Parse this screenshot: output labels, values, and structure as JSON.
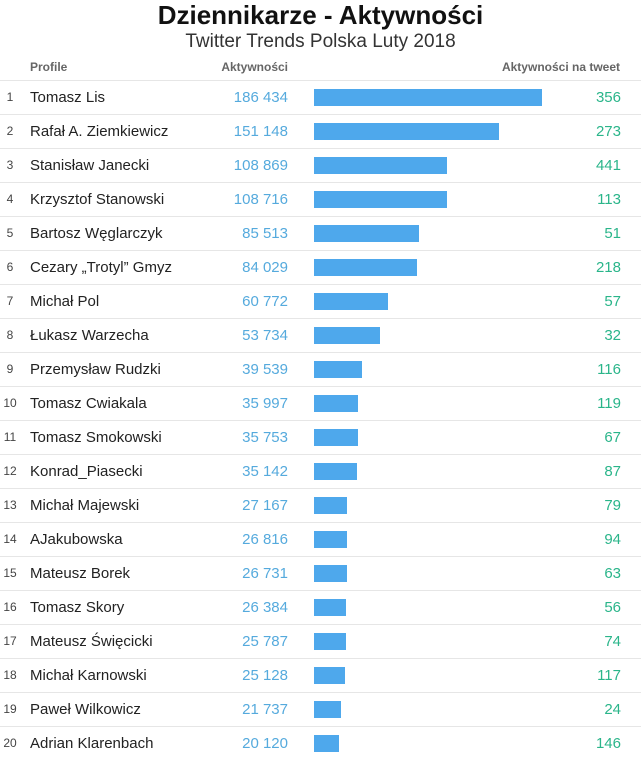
{
  "chart_data": {
    "type": "table",
    "title": "Dziennikarze - Aktywności",
    "subtitle": "Twitter Trends Polska Luty 2018",
    "columns": [
      "Profile",
      "Aktywności",
      "Aktywności na tweet"
    ],
    "bar_color": "#4ea8ec",
    "aktywnosci_color": "#55aadd",
    "per_tweet_color": "#2ab58a",
    "rows": [
      {
        "rank": "1",
        "name": "Tomasz Lis",
        "aktywnosci_label": "186 434",
        "aktywnosci": 186434,
        "per_tweet": "356"
      },
      {
        "rank": "2",
        "name": "Rafał A. Ziemkiewicz",
        "aktywnosci_label": "151 148",
        "aktywnosci": 151148,
        "per_tweet": "273"
      },
      {
        "rank": "3",
        "name": "Stanisław Janecki",
        "aktywnosci_label": "108 869",
        "aktywnosci": 108869,
        "per_tweet": "441"
      },
      {
        "rank": "4",
        "name": "Krzysztof Stanowski",
        "aktywnosci_label": "108 716",
        "aktywnosci": 108716,
        "per_tweet": "113"
      },
      {
        "rank": "5",
        "name": "Bartosz Węglarczyk",
        "aktywnosci_label": "85 513",
        "aktywnosci": 85513,
        "per_tweet": "51"
      },
      {
        "rank": "6",
        "name": "Cezary „Trotyl” Gmyz",
        "aktywnosci_label": "84 029",
        "aktywnosci": 84029,
        "per_tweet": "218"
      },
      {
        "rank": "7",
        "name": "Michał Pol",
        "aktywnosci_label": "60 772",
        "aktywnosci": 60772,
        "per_tweet": "57"
      },
      {
        "rank": "8",
        "name": "Łukasz Warzecha",
        "aktywnosci_label": "53 734",
        "aktywnosci": 53734,
        "per_tweet": "32"
      },
      {
        "rank": "9",
        "name": "Przemysław Rudzki",
        "aktywnosci_label": "39 539",
        "aktywnosci": 39539,
        "per_tweet": "116"
      },
      {
        "rank": "10",
        "name": "Tomasz Cwiakala",
        "aktywnosci_label": "35 997",
        "aktywnosci": 35997,
        "per_tweet": "119"
      },
      {
        "rank": "11",
        "name": "Tomasz Smokowski",
        "aktywnosci_label": "35 753",
        "aktywnosci": 35753,
        "per_tweet": "67"
      },
      {
        "rank": "12",
        "name": "Konrad_Piasecki",
        "aktywnosci_label": "35 142",
        "aktywnosci": 35142,
        "per_tweet": "87"
      },
      {
        "rank": "13",
        "name": "Michał Majewski",
        "aktywnosci_label": "27 167",
        "aktywnosci": 27167,
        "per_tweet": "79"
      },
      {
        "rank": "14",
        "name": "AJakubowska",
        "aktywnosci_label": "26 816",
        "aktywnosci": 26816,
        "per_tweet": "94"
      },
      {
        "rank": "15",
        "name": "Mateusz Borek",
        "aktywnosci_label": "26 731",
        "aktywnosci": 26731,
        "per_tweet": "63"
      },
      {
        "rank": "16",
        "name": "Tomasz Skory",
        "aktywnosci_label": "26 384",
        "aktywnosci": 26384,
        "per_tweet": "56"
      },
      {
        "rank": "17",
        "name": "Mateusz Święcicki",
        "aktywnosci_label": "25 787",
        "aktywnosci": 25787,
        "per_tweet": "74"
      },
      {
        "rank": "18",
        "name": "Michał Karnowski",
        "aktywnosci_label": "25 128",
        "aktywnosci": 25128,
        "per_tweet": "117"
      },
      {
        "rank": "19",
        "name": "Paweł Wilkowicz",
        "aktywnosci_label": "21 737",
        "aktywnosci": 21737,
        "per_tweet": "24"
      },
      {
        "rank": "20",
        "name": "Adrian Klarenbach",
        "aktywnosci_label": "20 120",
        "aktywnosci": 20120,
        "per_tweet": "146"
      }
    ]
  }
}
